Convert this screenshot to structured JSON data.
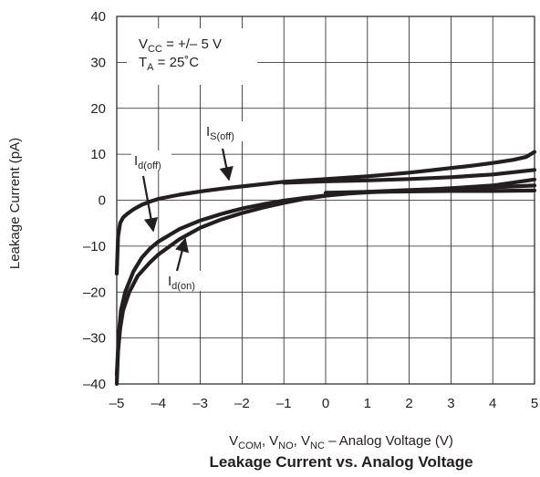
{
  "chart_data": {
    "type": "line",
    "title": "Leakage Current vs. Analog Voltage",
    "ylabel": "Leakage Current  (pA)",
    "xlabel": {
      "parts": [
        {
          "text": "V",
          "sub": "COM"
        },
        {
          "text": ", V",
          "sub": "NO"
        },
        {
          "text": ", V",
          "sub": "NC"
        },
        {
          "text": " – Analog Voltage (V)",
          "sub": ""
        }
      ]
    },
    "xlim": [
      -5,
      5
    ],
    "ylim": [
      -40,
      40
    ],
    "xticks": [
      -5,
      -4,
      -3,
      -2,
      -1,
      0,
      1,
      2,
      3,
      4,
      5
    ],
    "xtick_labels": [
      "–5",
      "–4",
      "–3",
      "–2",
      "–1",
      "0",
      "1",
      "2",
      "3",
      "4",
      "5"
    ],
    "yticks": [
      -40,
      -30,
      -20,
      -10,
      0,
      10,
      20,
      30,
      40
    ],
    "ytick_labels": [
      "–40",
      "–30",
      "–20",
      "–10",
      "0",
      "10",
      "20",
      "30",
      "40"
    ],
    "grid": true,
    "conditions": [
      {
        "parts": [
          {
            "text": "V",
            "sub": "CC"
          },
          {
            "text": " = +/– 5 V",
            "sub": ""
          }
        ]
      },
      {
        "parts": [
          {
            "text": "T",
            "sub": "A"
          },
          {
            "text": " = 25˚C",
            "sub": ""
          }
        ]
      }
    ],
    "series": [
      {
        "name": "IS(off)",
        "label_parts": [
          {
            "text": "I",
            "sub": "S(off)"
          }
        ],
        "x": [
          -5,
          -4.97,
          -4.92,
          -4.85,
          -4.75,
          -4.6,
          -4.4,
          -4.2,
          -4.0,
          -3.5,
          -3.0,
          -2.5,
          -2.0,
          -1.5,
          -1.0,
          -0.5,
          0,
          0.5,
          1.0,
          1.5,
          2.0,
          2.5,
          3.0,
          3.5,
          4.0,
          4.5,
          4.8,
          5.0
        ],
        "y": [
          -16,
          -8,
          -5,
          -3.8,
          -3,
          -2,
          -1,
          -0.3,
          0.3,
          1.2,
          1.9,
          2.5,
          3.0,
          3.5,
          4.0,
          4.3,
          4.6,
          4.9,
          5.2,
          5.6,
          6.0,
          6.5,
          7.0,
          7.5,
          8.1,
          8.8,
          9.4,
          10.5
        ]
      },
      {
        "name": "Id(off)",
        "label_parts": [
          {
            "text": "I",
            "sub": "d(off)"
          }
        ],
        "x": [
          -5,
          -4.95,
          -4.9,
          -4.8,
          -4.6,
          -4.4,
          -4.2,
          -4.0,
          -3.5,
          -3.0,
          -2.5,
          -2.0,
          -1.5,
          -1.0,
          -0.5,
          0,
          0.5,
          1.0,
          2.0,
          3.0,
          4.0,
          5.0
        ],
        "y": [
          -38,
          -29,
          -24,
          -20,
          -15.5,
          -12.5,
          -10.5,
          -9,
          -6.3,
          -4.4,
          -3.0,
          -1.8,
          -0.9,
          -0.1,
          0.5,
          1.0,
          1.4,
          1.7,
          2.1,
          2.6,
          3.2,
          4.5
        ]
      },
      {
        "name": "Id(on)",
        "label_parts": [
          {
            "text": "I",
            "sub": "d(on)"
          }
        ],
        "x": [
          -5,
          -4.97,
          -4.92,
          -4.85,
          -4.7,
          -4.5,
          -4.2,
          -4.0,
          -3.5,
          -3.0,
          -2.5,
          -2.0,
          -1.5,
          -1.0,
          -0.5,
          0,
          0.5,
          1.0,
          2.0,
          3.0,
          4.0,
          5.0
        ],
        "y": [
          -40,
          -33,
          -28,
          -24,
          -20,
          -16.5,
          -13.5,
          -11.8,
          -8.5,
          -6.0,
          -4.2,
          -2.8,
          -1.6,
          -0.6,
          0.3,
          1.0,
          1.5,
          1.8,
          2.2,
          2.5,
          2.8,
          3.2
        ]
      },
      {
        "name": "",
        "x": [
          -1.0,
          0,
          1.0,
          2.0,
          3.0,
          4.0,
          5.0
        ],
        "y": [
          3.8,
          4.1,
          4.3,
          4.6,
          5.0,
          5.6,
          6.6
        ]
      },
      {
        "name": "",
        "x": [
          0,
          1.0,
          2.0,
          3.0,
          4.0,
          5.0
        ],
        "y": [
          1.6,
          1.8,
          1.9,
          2.0,
          2.0,
          2.1
        ]
      }
    ]
  }
}
